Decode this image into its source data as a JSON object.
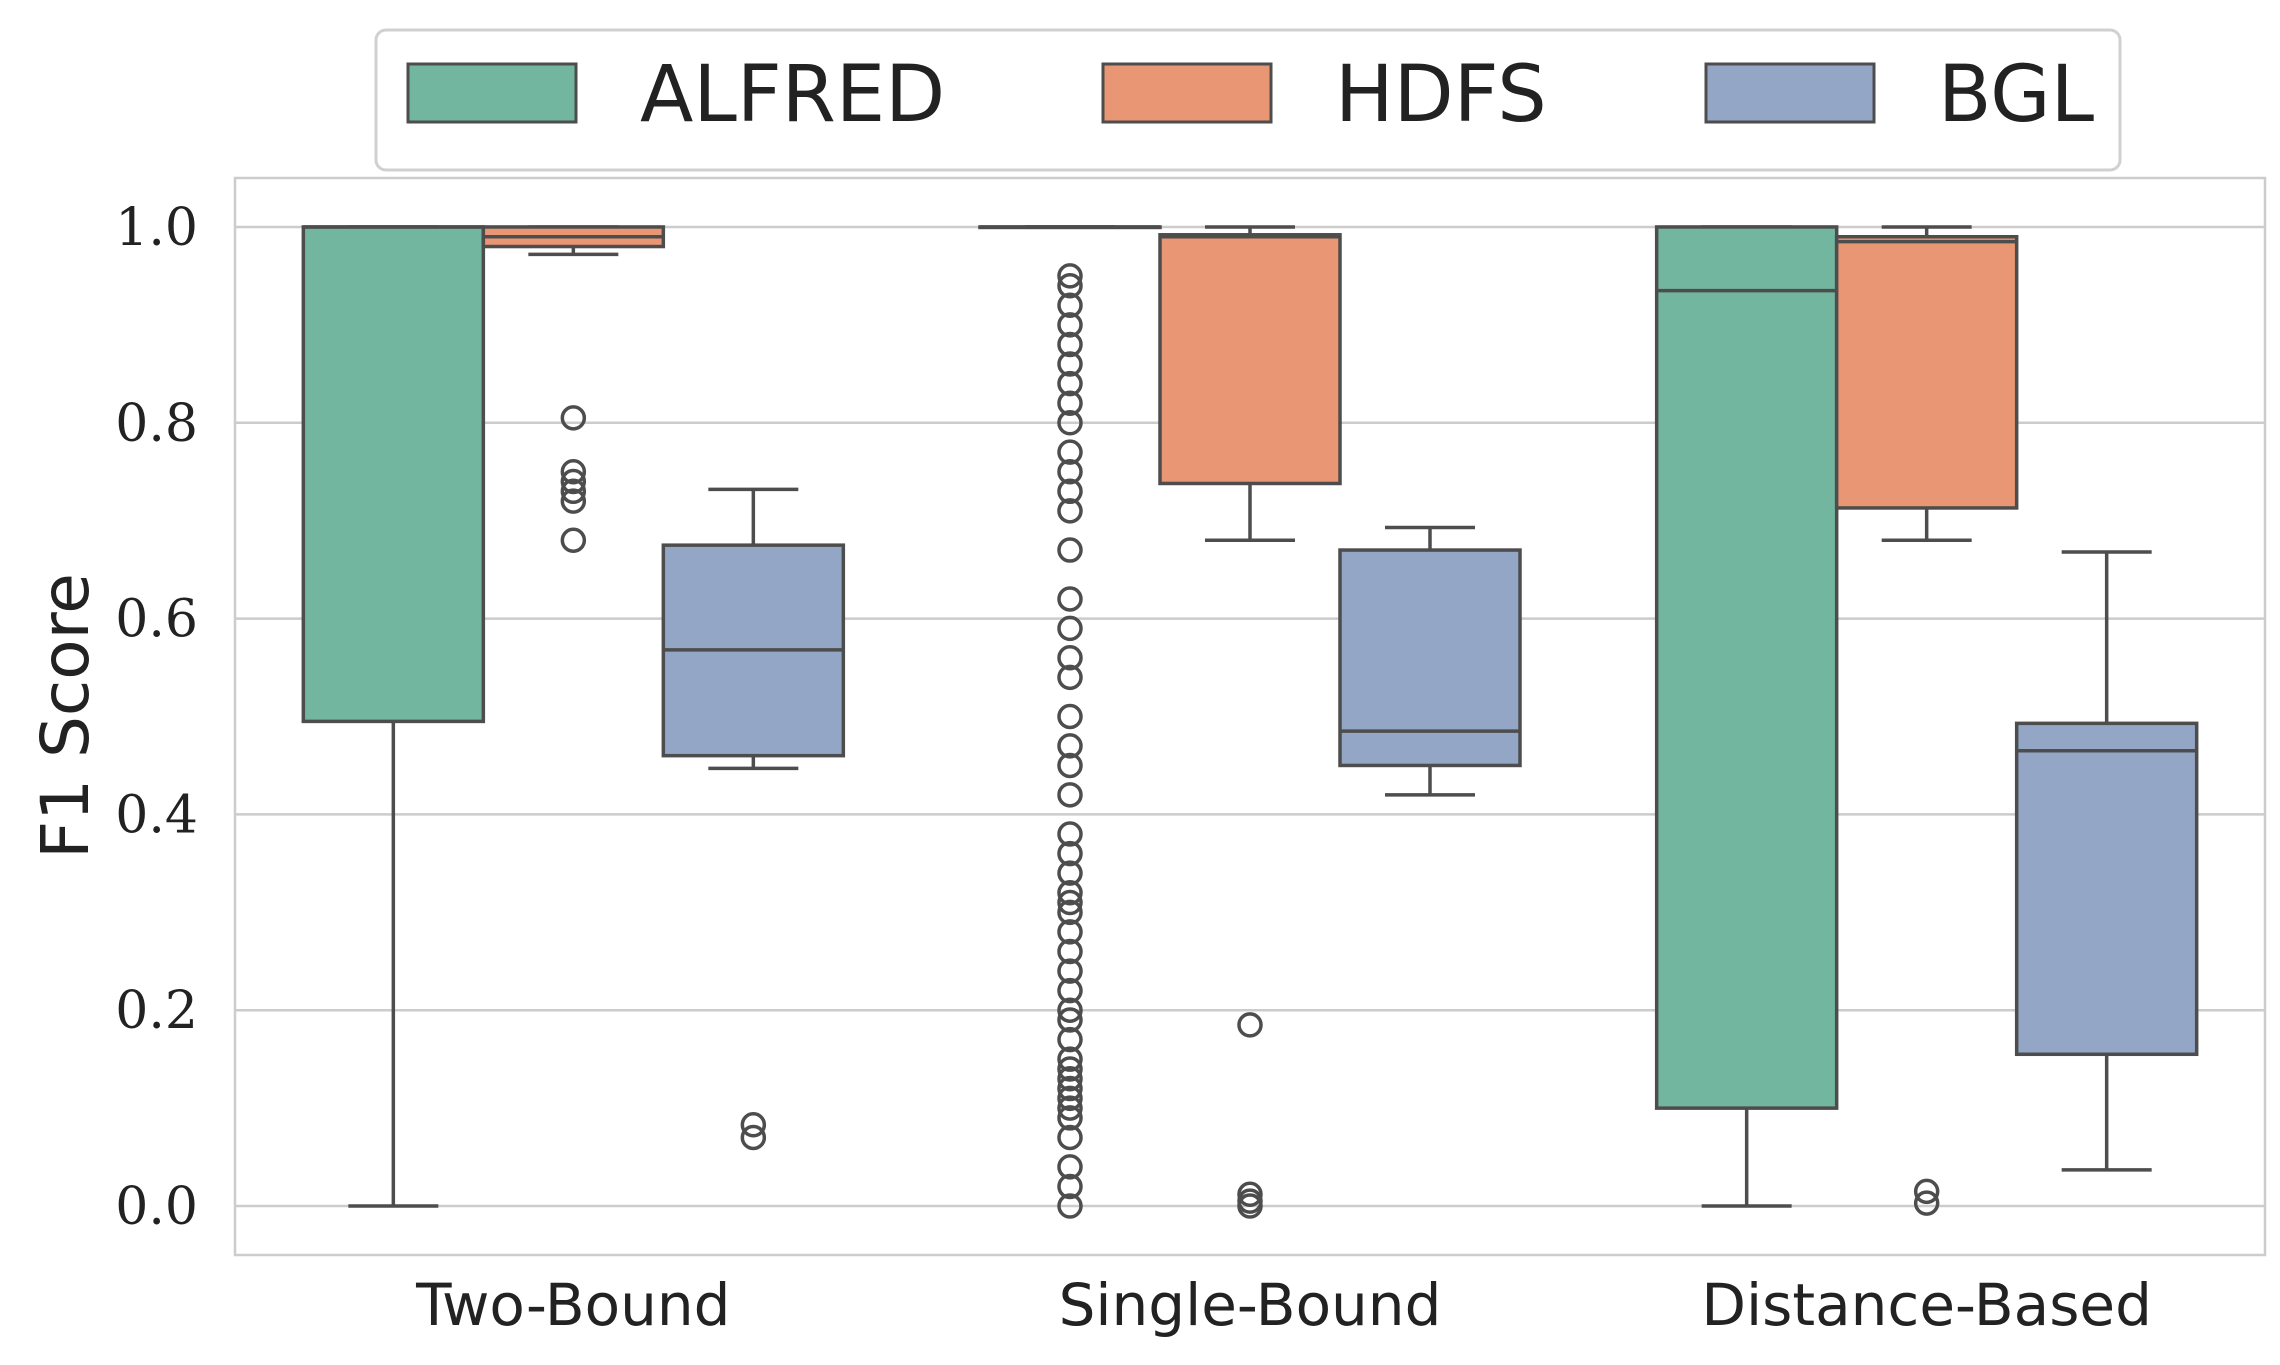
{
  "chart_data": {
    "type": "boxplot",
    "title": "",
    "xlabel": "",
    "ylabel": "F1 Score",
    "ylim": [
      -0.05,
      1.05
    ],
    "yticks": [
      0.0,
      0.2,
      0.4,
      0.6,
      0.8,
      1.0
    ],
    "ytick_labels": [
      "0.0",
      "0.2",
      "0.4",
      "0.6",
      "0.8",
      "1.0"
    ],
    "grid": true,
    "legend_position": "top-center",
    "categories": [
      "Two-Bound",
      "Single-Bound",
      "Distance-Based"
    ],
    "series": [
      {
        "name": "ALFRED",
        "color": "#73b6a0",
        "boxes": [
          {
            "whislo": 0.0,
            "q1": 0.495,
            "med": 1.0,
            "q3": 1.0,
            "whishi": 1.0,
            "fliers": []
          },
          {
            "whislo": 1.0,
            "q1": 1.0,
            "med": 1.0,
            "q3": 1.0,
            "whishi": 1.0,
            "fliers": [
              0.0,
              0.02,
              0.04,
              0.07,
              0.09,
              0.1,
              0.11,
              0.12,
              0.13,
              0.14,
              0.15,
              0.17,
              0.19,
              0.2,
              0.22,
              0.24,
              0.26,
              0.28,
              0.3,
              0.31,
              0.32,
              0.34,
              0.36,
              0.38,
              0.42,
              0.45,
              0.47,
              0.5,
              0.54,
              0.56,
              0.59,
              0.62,
              0.67,
              0.71,
              0.73,
              0.75,
              0.77,
              0.8,
              0.82,
              0.84,
              0.86,
              0.88,
              0.9,
              0.92,
              0.94,
              0.95
            ]
          },
          {
            "whislo": 0.0,
            "q1": 0.1,
            "med": 0.935,
            "q3": 1.0,
            "whishi": 1.0,
            "fliers": []
          }
        ]
      },
      {
        "name": "HDFS",
        "color": "#e99674",
        "boxes": [
          {
            "whislo": 0.972,
            "q1": 0.98,
            "med": 0.99,
            "q3": 1.0,
            "whishi": 1.0,
            "fliers": [
              0.68,
              0.72,
              0.73,
              0.74,
              0.75,
              0.805
            ]
          },
          {
            "whislo": 0.68,
            "q1": 0.738,
            "med": 0.99,
            "q3": 0.992,
            "whishi": 1.0,
            "fliers": [
              0.0,
              0.005,
              0.012,
              0.185
            ]
          },
          {
            "whislo": 0.68,
            "q1": 0.713,
            "med": 0.985,
            "q3": 0.99,
            "whishi": 1.0,
            "fliers": [
              0.003,
              0.015
            ]
          }
        ]
      },
      {
        "name": "BGL",
        "color": "#94a6c6",
        "boxes": [
          {
            "whislo": 0.447,
            "q1": 0.46,
            "med": 0.568,
            "q3": 0.675,
            "whishi": 0.732,
            "fliers": [
              0.07,
              0.083
            ]
          },
          {
            "whislo": 0.42,
            "q1": 0.45,
            "med": 0.485,
            "q3": 0.67,
            "whishi": 0.693,
            "fliers": []
          },
          {
            "whislo": 0.037,
            "q1": 0.155,
            "med": 0.465,
            "q3": 0.493,
            "whishi": 0.668,
            "fliers": []
          }
        ]
      }
    ]
  }
}
